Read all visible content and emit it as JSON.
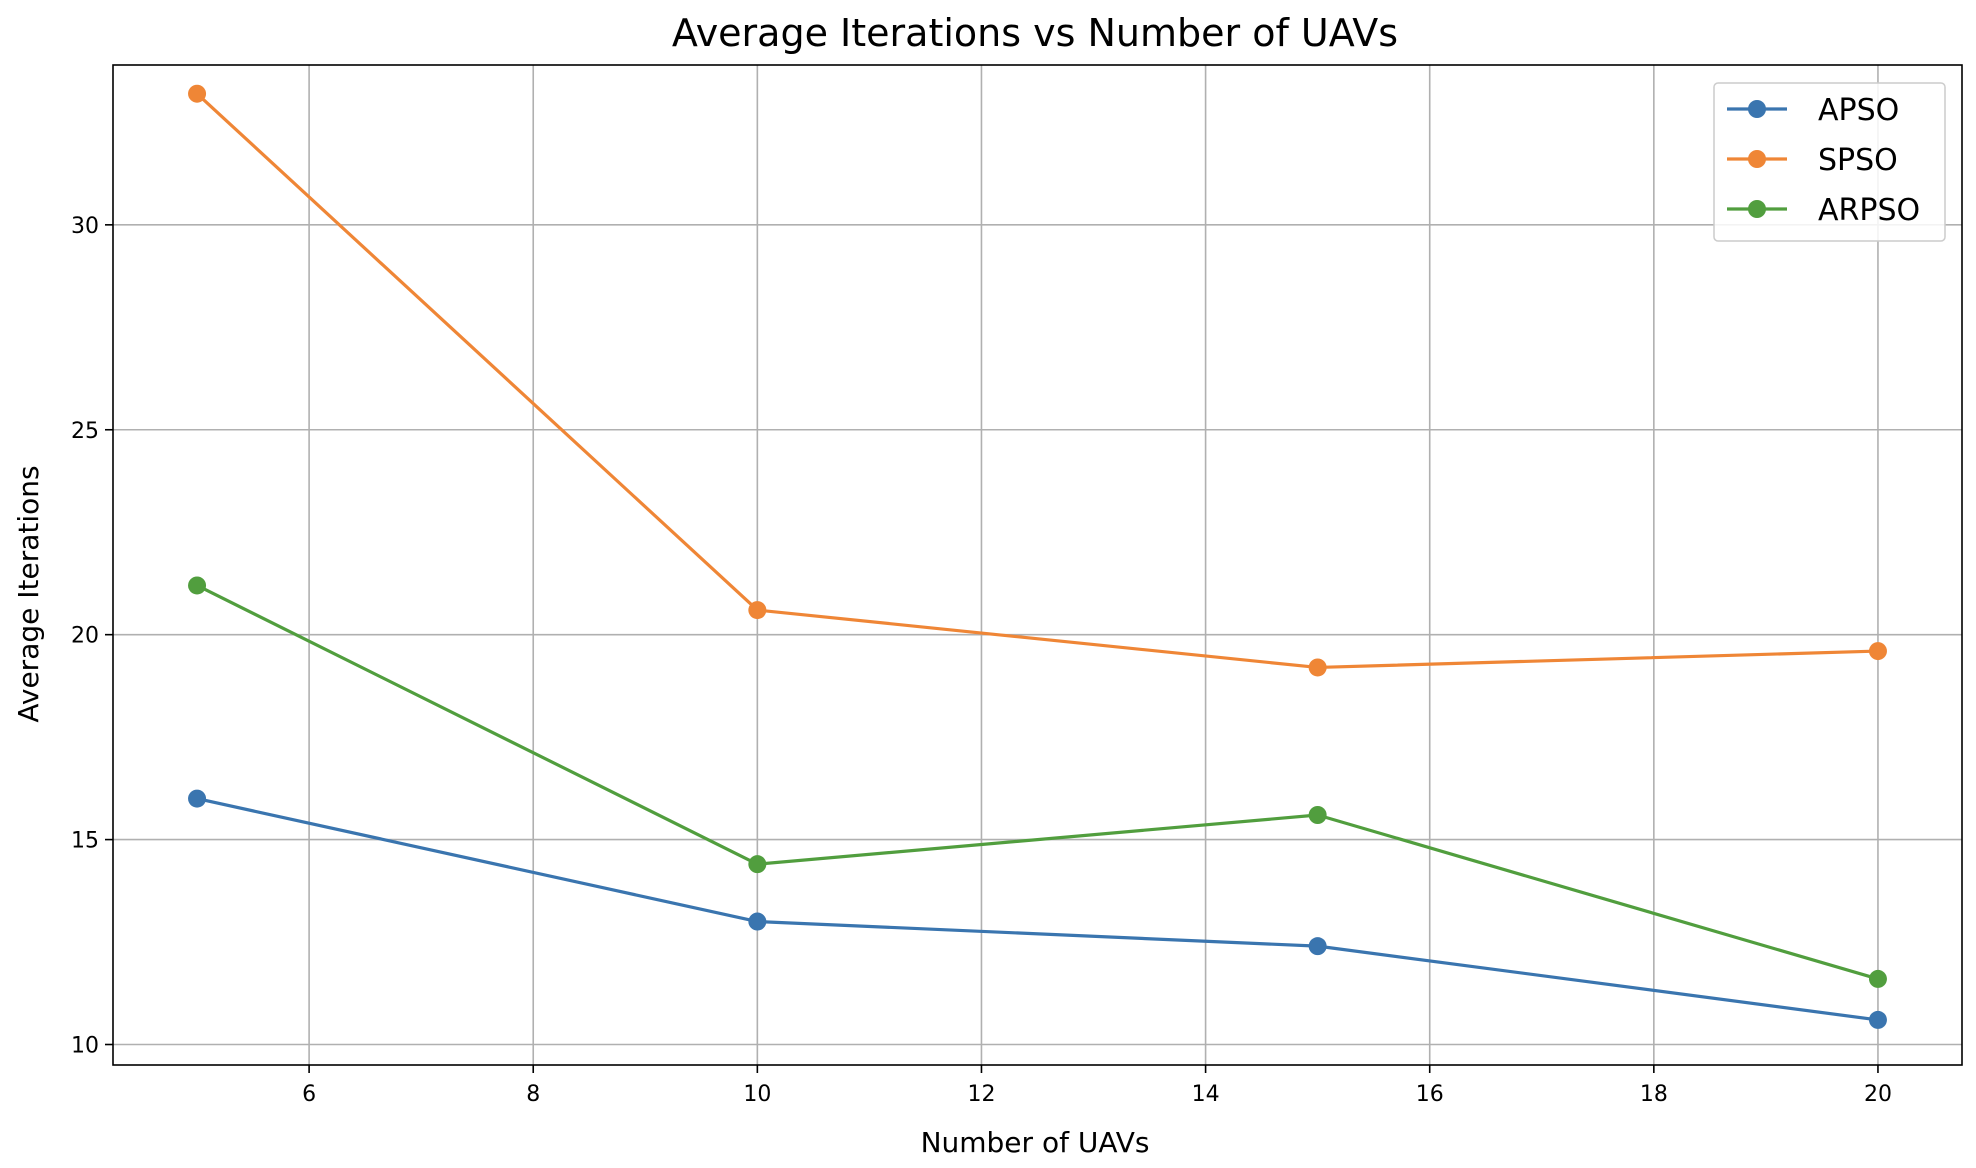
{
  "chart_data": {
    "type": "line",
    "title": "Average Iterations vs Number of UAVs",
    "xlabel": "Number of UAVs",
    "ylabel": "Average Iterations",
    "x": [
      5,
      10,
      15,
      20
    ],
    "xlim": [
      4.25,
      20.75
    ],
    "ylim": [
      9.5,
      33.9
    ],
    "xticks": [
      6,
      8,
      10,
      12,
      14,
      16,
      18,
      20
    ],
    "yticks": [
      10,
      15,
      20,
      25,
      30
    ],
    "grid": true,
    "legend": "top-right",
    "series": [
      {
        "name": "APSO",
        "color": "#3a75af",
        "values": [
          16.0,
          13.0,
          12.4,
          10.6
        ]
      },
      {
        "name": "SPSO",
        "color": "#ef8636",
        "values": [
          33.2,
          20.6,
          19.2,
          19.6
        ]
      },
      {
        "name": "ARPSO",
        "color": "#519e3e",
        "values": [
          21.2,
          14.4,
          15.6,
          11.6
        ]
      }
    ]
  }
}
